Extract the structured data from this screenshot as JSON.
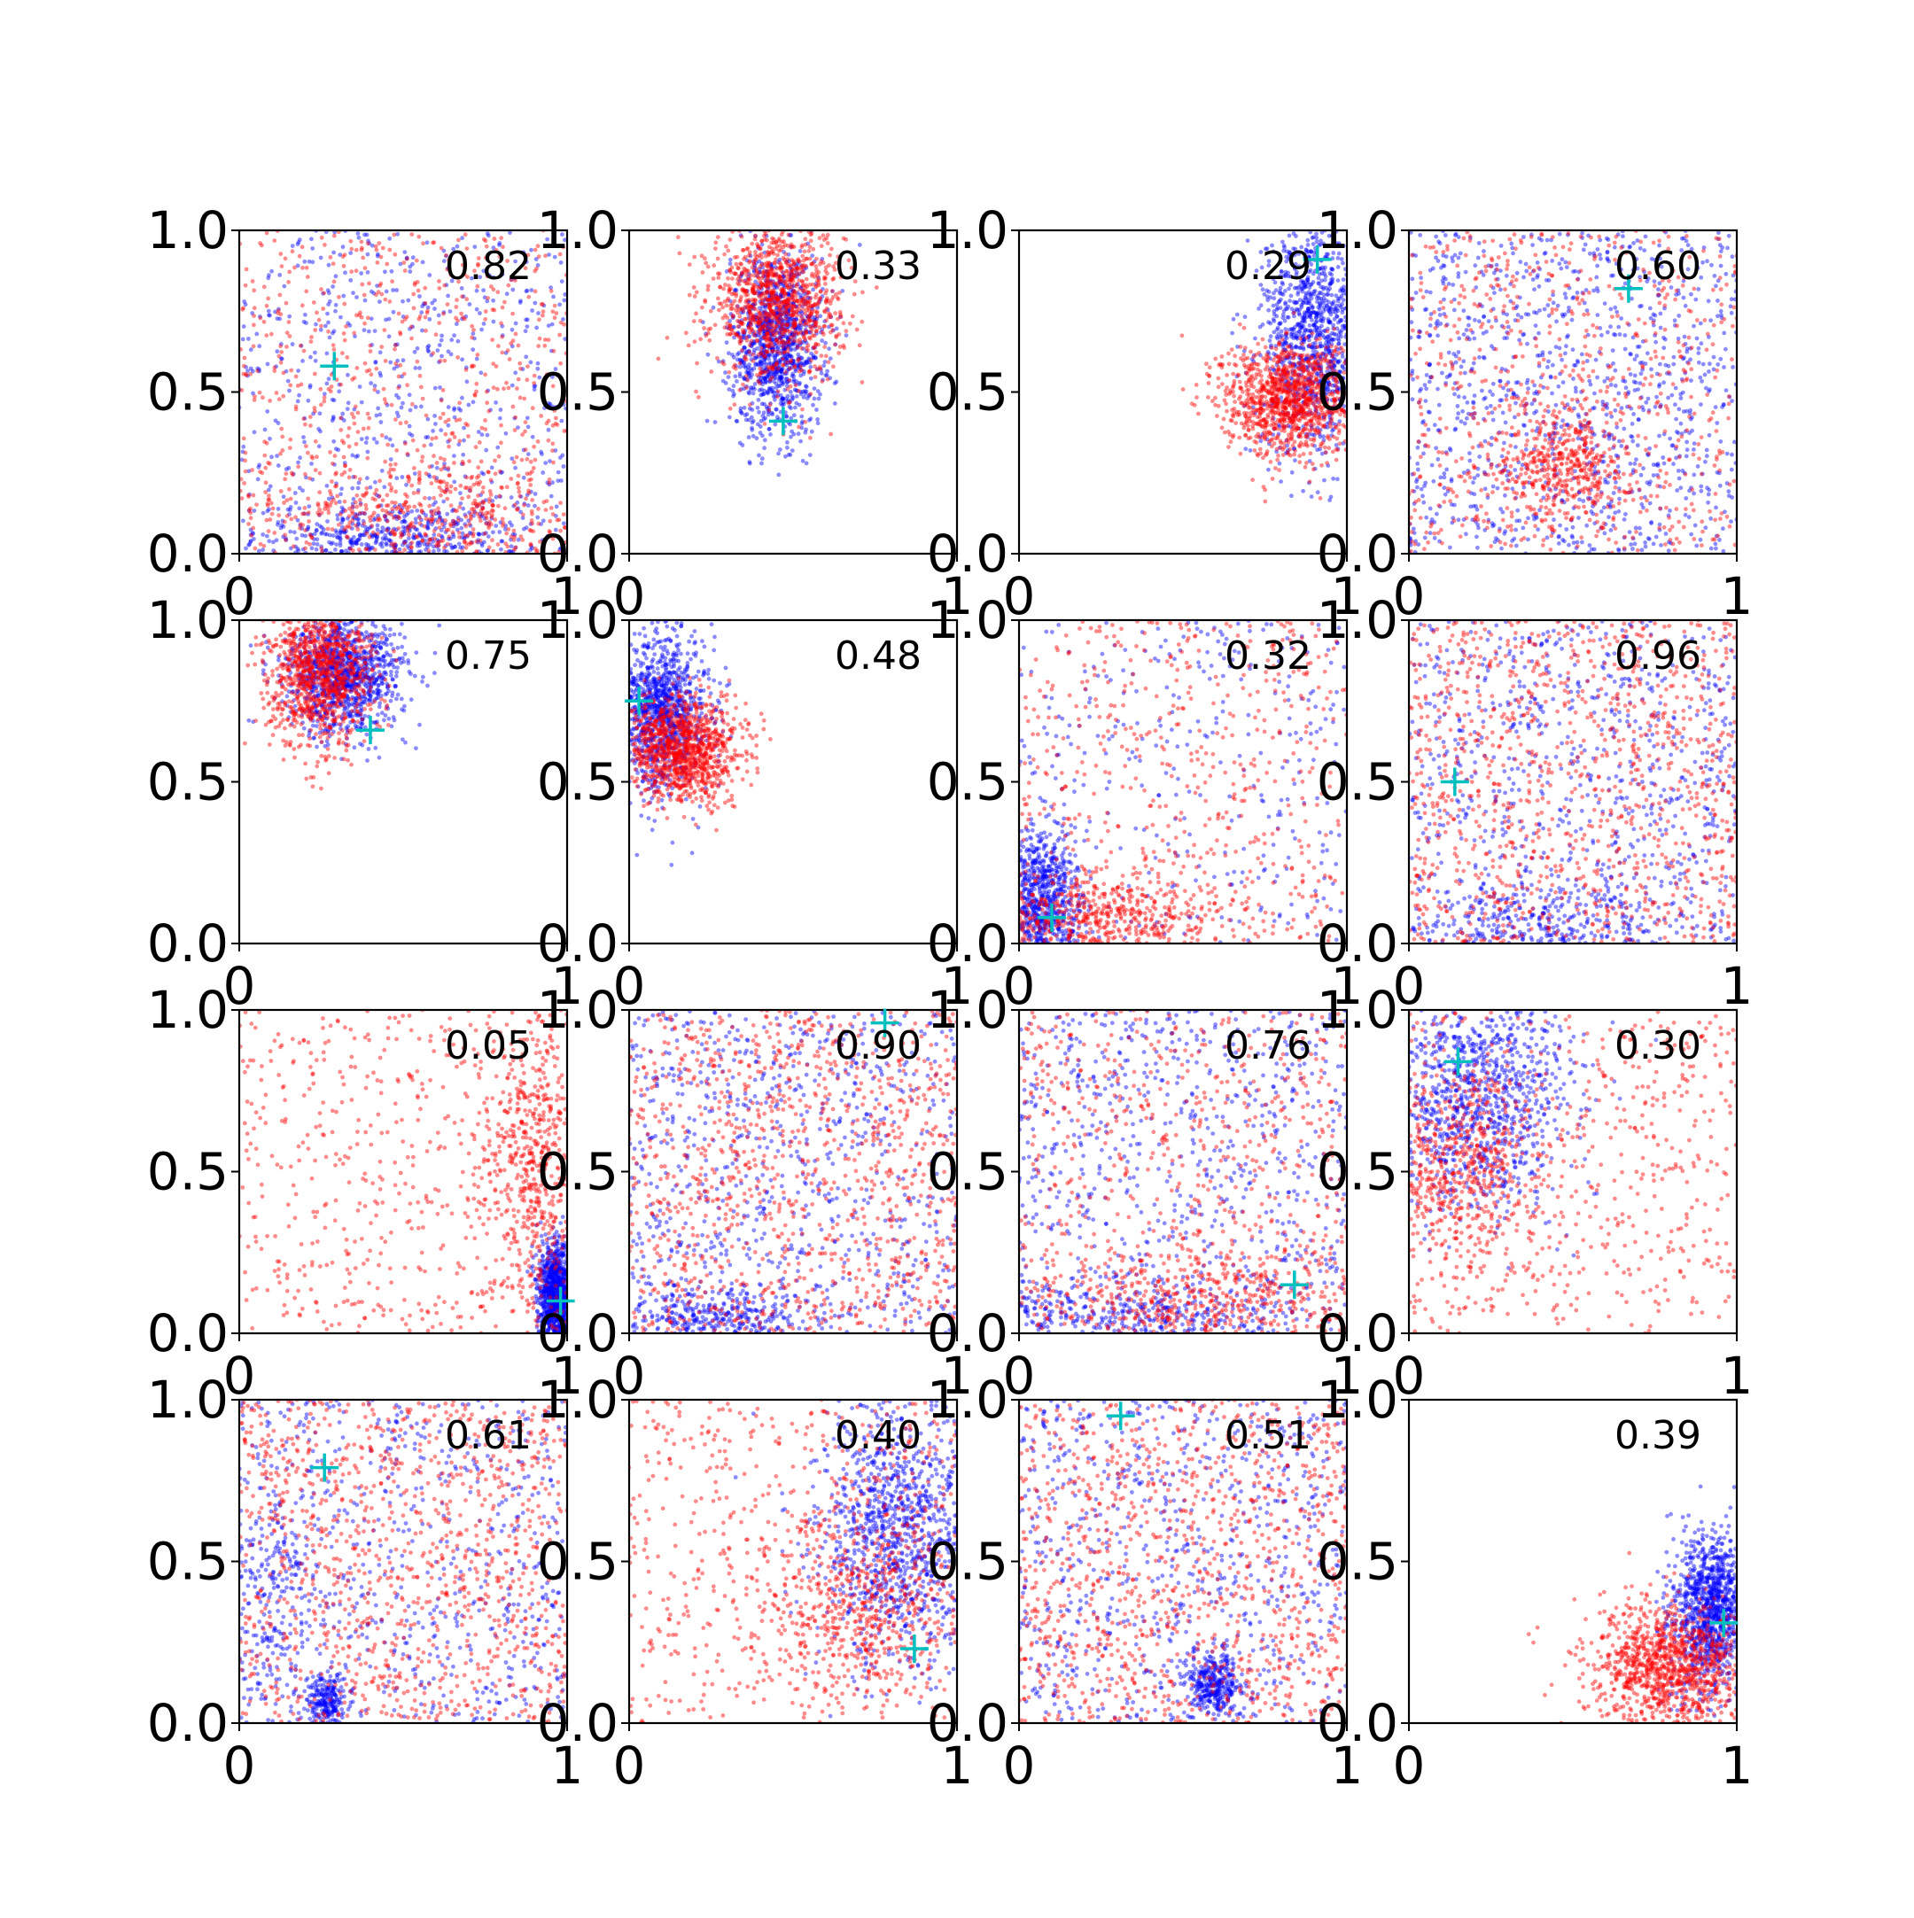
{
  "figure": {
    "rows": 4,
    "cols": 4,
    "background": "#ffffff",
    "series_colors": {
      "blue": "#0000ff",
      "red": "#ff0000",
      "marker": "#00bfbf"
    }
  },
  "chart_data": [
    {
      "type": "scatter",
      "annotation": "0.82",
      "xlim": [
        0,
        1
      ],
      "ylim": [
        0,
        1
      ],
      "xticks": [
        "0",
        "1"
      ],
      "yticks": [
        "0.0",
        "0.5",
        "1.0"
      ],
      "marker_point": [
        0.29,
        0.58
      ],
      "clusters": {
        "blue": [
          {
            "cx": 0.5,
            "cy": 0.5,
            "sx": 0.35,
            "sy": 0.35,
            "w": 0.6,
            "uniform": true
          },
          {
            "cx": 0.45,
            "cy": 0.05,
            "sx": 0.2,
            "sy": 0.05,
            "w": 0.4
          }
        ],
        "red": [
          {
            "cx": 0.5,
            "cy": 0.5,
            "sx": 0.35,
            "sy": 0.35,
            "w": 0.6,
            "uniform": true
          },
          {
            "cx": 0.6,
            "cy": 0.12,
            "sx": 0.25,
            "sy": 0.1,
            "w": 0.4
          }
        ]
      }
    },
    {
      "type": "scatter",
      "annotation": "0.33",
      "xlim": [
        0,
        1
      ],
      "ylim": [
        0,
        1
      ],
      "xticks": [
        "0",
        "1"
      ],
      "yticks": [
        "0.0",
        "0.5",
        "1.0"
      ],
      "marker_point": [
        0.47,
        0.41
      ],
      "clusters": {
        "blue": [
          {
            "cx": 0.45,
            "cy": 0.65,
            "sx": 0.07,
            "sy": 0.14,
            "w": 1
          }
        ],
        "red": [
          {
            "cx": 0.45,
            "cy": 0.78,
            "sx": 0.1,
            "sy": 0.12,
            "w": 1
          }
        ]
      }
    },
    {
      "type": "scatter",
      "annotation": "0.29",
      "xlim": [
        0,
        1
      ],
      "ylim": [
        0,
        1
      ],
      "xticks": [
        "0",
        "1"
      ],
      "yticks": [
        "0.0",
        "0.5",
        "1.0"
      ],
      "marker_point": [
        0.91,
        0.91
      ],
      "clusters": {
        "blue": [
          {
            "cx": 0.9,
            "cy": 0.68,
            "sx": 0.08,
            "sy": 0.18,
            "w": 1
          }
        ],
        "red": [
          {
            "cx": 0.82,
            "cy": 0.48,
            "sx": 0.1,
            "sy": 0.09,
            "w": 1
          }
        ]
      }
    },
    {
      "type": "scatter",
      "annotation": "0.60",
      "xlim": [
        0,
        1
      ],
      "ylim": [
        0,
        1
      ],
      "xticks": [
        "0",
        "1"
      ],
      "yticks": [
        "0.0",
        "0.5",
        "1.0"
      ],
      "marker_point": [
        0.67,
        0.82
      ],
      "clusters": {
        "blue": [
          {
            "cx": 0.5,
            "cy": 0.6,
            "sx": 0.3,
            "sy": 0.3,
            "w": 1,
            "uniform": true
          }
        ],
        "red": [
          {
            "cx": 0.5,
            "cy": 0.5,
            "sx": 0.35,
            "sy": 0.35,
            "w": 0.6,
            "uniform": true
          },
          {
            "cx": 0.47,
            "cy": 0.28,
            "sx": 0.1,
            "sy": 0.09,
            "w": 0.4
          }
        ]
      }
    },
    {
      "type": "scatter",
      "annotation": "0.75",
      "xlim": [
        0,
        1
      ],
      "ylim": [
        0,
        1
      ],
      "xticks": [
        "0",
        "1"
      ],
      "yticks": [
        "0.0",
        "0.5",
        "1.0"
      ],
      "marker_point": [
        0.4,
        0.66
      ],
      "clusters": {
        "blue": [
          {
            "cx": 0.32,
            "cy": 0.83,
            "sx": 0.09,
            "sy": 0.09,
            "w": 1
          }
        ],
        "red": [
          {
            "cx": 0.25,
            "cy": 0.85,
            "sx": 0.08,
            "sy": 0.12,
            "w": 1
          }
        ]
      }
    },
    {
      "type": "scatter",
      "annotation": "0.48",
      "xlim": [
        0,
        1
      ],
      "ylim": [
        0,
        1
      ],
      "xticks": [
        "0",
        "1"
      ],
      "yticks": [
        "0.0",
        "0.5",
        "1.0"
      ],
      "marker_point": [
        0.03,
        0.75
      ],
      "clusters": {
        "blue": [
          {
            "cx": 0.1,
            "cy": 0.72,
            "sx": 0.07,
            "sy": 0.12,
            "w": 1
          }
        ],
        "red": [
          {
            "cx": 0.16,
            "cy": 0.6,
            "sx": 0.09,
            "sy": 0.08,
            "w": 1
          }
        ]
      }
    },
    {
      "type": "scatter",
      "annotation": "0.32",
      "xlim": [
        0,
        1
      ],
      "ylim": [
        0,
        1
      ],
      "xticks": [
        "0",
        "1"
      ],
      "yticks": [
        "0.0",
        "0.5",
        "1.0"
      ],
      "marker_point": [
        0.1,
        0.08
      ],
      "clusters": {
        "blue": [
          {
            "cx": 0.07,
            "cy": 0.12,
            "sx": 0.06,
            "sy": 0.12,
            "w": 0.7
          },
          {
            "cx": 0.5,
            "cy": 0.5,
            "sx": 0.3,
            "sy": 0.3,
            "w": 0.3,
            "uniform": true
          }
        ],
        "red": [
          {
            "cx": 0.5,
            "cy": 0.5,
            "sx": 0.35,
            "sy": 0.35,
            "w": 0.5,
            "uniform": true
          },
          {
            "cx": 0.25,
            "cy": 0.08,
            "sx": 0.2,
            "sy": 0.07,
            "w": 0.5
          }
        ]
      }
    },
    {
      "type": "scatter",
      "annotation": "0.96",
      "xlim": [
        0,
        1
      ],
      "ylim": [
        0,
        1
      ],
      "xticks": [
        "0",
        "1"
      ],
      "yticks": [
        "0.0",
        "0.5",
        "1.0"
      ],
      "marker_point": [
        0.14,
        0.5
      ],
      "clusters": {
        "blue": [
          {
            "cx": 0.5,
            "cy": 0.5,
            "sx": 0.35,
            "sy": 0.35,
            "w": 0.7,
            "uniform": true
          },
          {
            "cx": 0.4,
            "cy": 0.06,
            "sx": 0.2,
            "sy": 0.06,
            "w": 0.3
          }
        ],
        "red": [
          {
            "cx": 0.5,
            "cy": 0.5,
            "sx": 0.35,
            "sy": 0.35,
            "w": 1,
            "uniform": true
          }
        ]
      }
    },
    {
      "type": "scatter",
      "annotation": "0.05",
      "xlim": [
        0,
        1
      ],
      "ylim": [
        0,
        1
      ],
      "xticks": [
        "0",
        "1"
      ],
      "yticks": [
        "0.0",
        "0.5",
        "1.0"
      ],
      "marker_point": [
        0.98,
        0.1
      ],
      "clusters": {
        "blue": [
          {
            "cx": 0.97,
            "cy": 0.12,
            "sx": 0.03,
            "sy": 0.08,
            "w": 1
          }
        ],
        "red": [
          {
            "cx": 0.5,
            "cy": 0.5,
            "sx": 0.35,
            "sy": 0.35,
            "w": 0.5,
            "uniform": true
          },
          {
            "cx": 0.9,
            "cy": 0.5,
            "sx": 0.08,
            "sy": 0.25,
            "w": 0.5
          }
        ]
      }
    },
    {
      "type": "scatter",
      "annotation": "0.90",
      "xlim": [
        0,
        1
      ],
      "ylim": [
        0,
        1
      ],
      "xticks": [
        "0",
        "1"
      ],
      "yticks": [
        "0.0",
        "0.5",
        "1.0"
      ],
      "marker_point": [
        0.78,
        0.96
      ],
      "clusters": {
        "blue": [
          {
            "cx": 0.5,
            "cy": 0.5,
            "sx": 0.35,
            "sy": 0.35,
            "w": 0.7,
            "uniform": true
          },
          {
            "cx": 0.25,
            "cy": 0.05,
            "sx": 0.15,
            "sy": 0.05,
            "w": 0.3
          }
        ],
        "red": [
          {
            "cx": 0.5,
            "cy": 0.5,
            "sx": 0.35,
            "sy": 0.35,
            "w": 1,
            "uniform": true
          }
        ]
      }
    },
    {
      "type": "scatter",
      "annotation": "0.76",
      "xlim": [
        0,
        1
      ],
      "ylim": [
        0,
        1
      ],
      "xticks": [
        "0",
        "1"
      ],
      "yticks": [
        "0.0",
        "0.5",
        "1.0"
      ],
      "marker_point": [
        0.84,
        0.15
      ],
      "clusters": {
        "blue": [
          {
            "cx": 0.5,
            "cy": 0.5,
            "sx": 0.35,
            "sy": 0.35,
            "w": 0.7,
            "uniform": true
          },
          {
            "cx": 0.3,
            "cy": 0.05,
            "sx": 0.25,
            "sy": 0.05,
            "w": 0.3
          }
        ],
        "red": [
          {
            "cx": 0.5,
            "cy": 0.5,
            "sx": 0.35,
            "sy": 0.35,
            "w": 0.6,
            "uniform": true
          },
          {
            "cx": 0.6,
            "cy": 0.1,
            "sx": 0.25,
            "sy": 0.08,
            "w": 0.4
          }
        ]
      }
    },
    {
      "type": "scatter",
      "annotation": "0.30",
      "xlim": [
        0,
        1
      ],
      "ylim": [
        0,
        1
      ],
      "xticks": [
        "0",
        "1"
      ],
      "yticks": [
        "0.0",
        "0.5",
        "1.0"
      ],
      "marker_point": [
        0.15,
        0.84
      ],
      "clusters": {
        "blue": [
          {
            "cx": 0.2,
            "cy": 0.75,
            "sx": 0.15,
            "sy": 0.18,
            "w": 1
          }
        ],
        "red": [
          {
            "cx": 0.5,
            "cy": 0.5,
            "sx": 0.35,
            "sy": 0.35,
            "w": 0.5,
            "uniform": true
          },
          {
            "cx": 0.15,
            "cy": 0.52,
            "sx": 0.12,
            "sy": 0.15,
            "w": 0.5
          }
        ]
      }
    },
    {
      "type": "scatter",
      "annotation": "0.61",
      "xlim": [
        0,
        1
      ],
      "ylim": [
        0,
        1
      ],
      "xticks": [
        "0",
        "1"
      ],
      "yticks": [
        "0.0",
        "0.5",
        "1.0"
      ],
      "marker_point": [
        0.26,
        0.79
      ],
      "clusters": {
        "blue": [
          {
            "cx": 0.5,
            "cy": 0.5,
            "sx": 0.35,
            "sy": 0.35,
            "w": 0.6,
            "uniform": true
          },
          {
            "cx": 0.27,
            "cy": 0.07,
            "sx": 0.03,
            "sy": 0.04,
            "w": 0.2
          },
          {
            "cx": 0.1,
            "cy": 0.45,
            "sx": 0.08,
            "sy": 0.2,
            "w": 0.2
          }
        ],
        "red": [
          {
            "cx": 0.5,
            "cy": 0.5,
            "sx": 0.35,
            "sy": 0.35,
            "w": 1,
            "uniform": true
          }
        ]
      }
    },
    {
      "type": "scatter",
      "annotation": "0.40",
      "xlim": [
        0,
        1
      ],
      "ylim": [
        0,
        1
      ],
      "xticks": [
        "0",
        "1"
      ],
      "yticks": [
        "0.0",
        "0.5",
        "1.0"
      ],
      "marker_point": [
        0.87,
        0.23
      ],
      "clusters": {
        "blue": [
          {
            "cx": 0.82,
            "cy": 0.6,
            "sx": 0.12,
            "sy": 0.22,
            "w": 1
          }
        ],
        "red": [
          {
            "cx": 0.5,
            "cy": 0.5,
            "sx": 0.35,
            "sy": 0.35,
            "w": 0.5,
            "uniform": true
          },
          {
            "cx": 0.7,
            "cy": 0.35,
            "sx": 0.15,
            "sy": 0.15,
            "w": 0.5
          }
        ]
      }
    },
    {
      "type": "scatter",
      "annotation": "0.51",
      "xlim": [
        0,
        1
      ],
      "ylim": [
        0,
        1
      ],
      "xticks": [
        "0",
        "1"
      ],
      "yticks": [
        "0.0",
        "0.5",
        "1.0"
      ],
      "marker_point": [
        0.31,
        0.95
      ],
      "clusters": {
        "blue": [
          {
            "cx": 0.5,
            "cy": 0.55,
            "sx": 0.35,
            "sy": 0.35,
            "w": 0.7,
            "uniform": true
          },
          {
            "cx": 0.6,
            "cy": 0.12,
            "sx": 0.04,
            "sy": 0.05,
            "w": 0.3
          }
        ],
        "red": [
          {
            "cx": 0.5,
            "cy": 0.5,
            "sx": 0.35,
            "sy": 0.35,
            "w": 1,
            "uniform": true
          }
        ]
      }
    },
    {
      "type": "scatter",
      "annotation": "0.39",
      "xlim": [
        0,
        1
      ],
      "ylim": [
        0,
        1
      ],
      "xticks": [
        "0",
        "1"
      ],
      "yticks": [
        "0.0",
        "0.5",
        "1.0"
      ],
      "marker_point": [
        0.96,
        0.31
      ],
      "clusters": {
        "blue": [
          {
            "cx": 0.92,
            "cy": 0.35,
            "sx": 0.06,
            "sy": 0.12,
            "w": 1
          }
        ],
        "red": [
          {
            "cx": 0.8,
            "cy": 0.18,
            "sx": 0.12,
            "sy": 0.1,
            "w": 1
          }
        ]
      }
    }
  ]
}
